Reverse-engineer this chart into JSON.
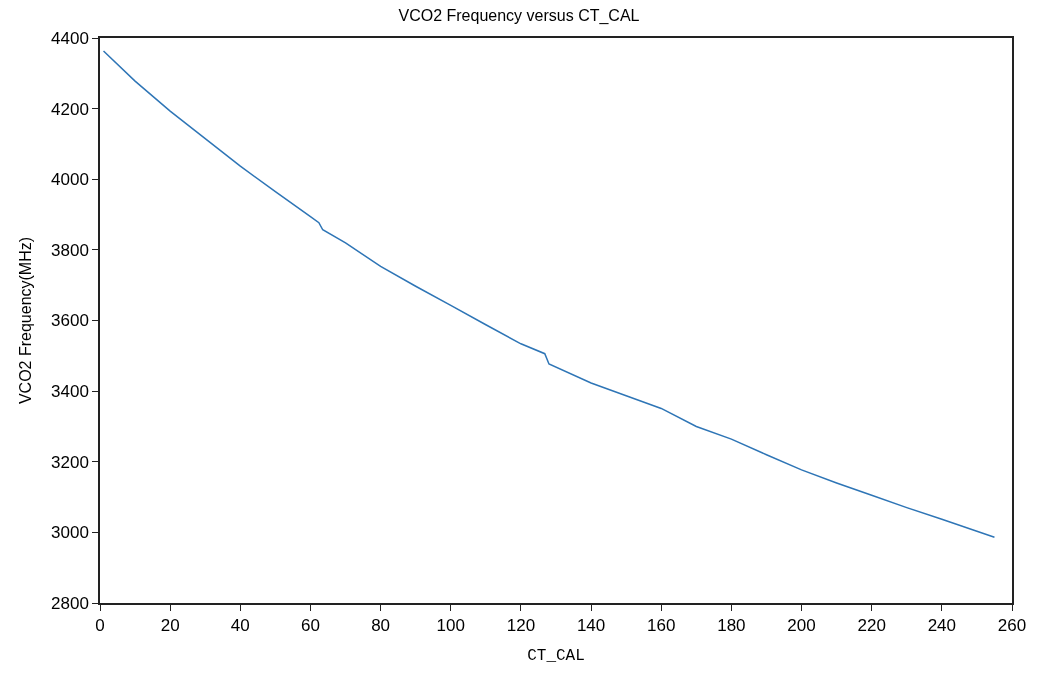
{
  "chart_data": {
    "type": "line",
    "title": "VCO2 Frequency versus CT_CAL",
    "xlabel": "CT_CAL",
    "ylabel": "VCO2 Frequency(MHz)",
    "x": [
      1,
      10,
      20,
      30,
      40,
      50,
      60,
      62.4,
      63.5,
      70,
      80,
      90,
      100,
      110,
      120,
      126.8,
      128,
      140,
      150,
      160,
      170,
      180,
      190,
      200,
      210,
      220,
      230,
      240,
      250,
      255
    ],
    "series": [
      {
        "color": "#2e75b6",
        "values": [
          4363,
          4278,
          4193,
          4115,
          4037,
          3965,
          3894,
          3877,
          3857,
          3820,
          3753,
          3697,
          3643,
          3588,
          3534,
          3506,
          3477,
          3423,
          3387,
          3351,
          3300,
          3264,
          3220,
          3177,
          3140,
          3105,
          3070,
          3037,
          3003,
          2986
        ]
      }
    ],
    "xlim": [
      0,
      260
    ],
    "xticks": [
      0,
      20,
      40,
      60,
      80,
      100,
      120,
      140,
      160,
      180,
      200,
      220,
      240,
      260
    ],
    "ylim": [
      2800,
      4400
    ],
    "yticks": [
      2800,
      3000,
      3200,
      3400,
      3600,
      3800,
      4000,
      4200,
      4400
    ],
    "marker": "none",
    "line_style": "solid"
  }
}
